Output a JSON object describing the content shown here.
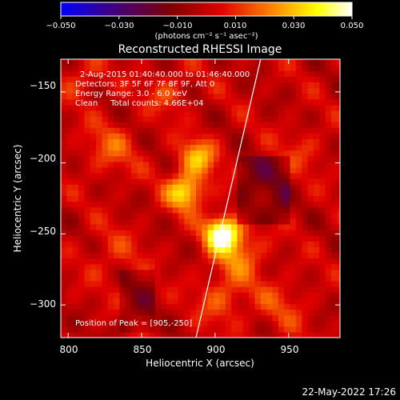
{
  "chart_data": {
    "type": "heatmap",
    "title": "Reconstructed RHESSI Image",
    "xlabel": "Heliocentric X (arcsec)",
    "ylabel": "Heliocentric Y (arcsec)",
    "xlim": [
      795,
      985
    ],
    "ylim": [
      -323,
      -127
    ],
    "x_ticks": [
      800,
      850,
      900,
      950
    ],
    "y_ticks": [
      -150,
      -200,
      -250,
      -300
    ],
    "x_tick_labels": [
      "800",
      "850",
      "900",
      "950"
    ],
    "y_tick_labels": [
      "−150",
      "−200",
      "−250",
      "−300"
    ],
    "colorbar": {
      "min": -0.05,
      "max": 0.05,
      "ticks": [
        -0.05,
        -0.03,
        -0.01,
        0.01,
        0.03,
        0.05
      ],
      "tick_labels": [
        "−0.050",
        "−0.030",
        "−0.010",
        "0.010",
        "0.030",
        "0.050"
      ],
      "label": "(photons cm⁻² s⁻¹ asec⁻²)",
      "colors": [
        "#0000ff",
        "#400080",
        "#800000",
        "#e00000",
        "#ff8000",
        "#ffff00",
        "#ffffff"
      ]
    },
    "annotations": [
      "2-Aug-2015 01:40:40.000 to 01:46:40.000",
      "Detectors: 3F 5F 6F 7F 8F 9F, Att 0",
      "Energy Range: 3.0 - 6.0 keV",
      "Clean     Total counts: 4.66E+04",
      "Position of Peak = [905,-250]"
    ],
    "peak": {
      "x": 905,
      "y": -250
    },
    "limb_line": {
      "x": [
        887,
        931
      ],
      "y": [
        -323,
        -127
      ]
    },
    "sources": [
      {
        "x": 905,
        "y": -249,
        "sigma": 8,
        "value": 0.05
      },
      {
        "x": 880,
        "y": -220,
        "sigma": 9,
        "value": 0.037
      },
      {
        "x": 888,
        "y": -196,
        "sigma": 9,
        "value": 0.028
      },
      {
        "x": 915,
        "y": -262,
        "sigma": 13,
        "value": 0.02
      },
      {
        "x": 905,
        "y": -295,
        "sigma": 12,
        "value": 0.015
      },
      {
        "x": 945,
        "y": -300,
        "sigma": 14,
        "value": 0.01
      },
      {
        "x": 828,
        "y": -190,
        "sigma": 13,
        "value": 0.014
      },
      {
        "x": 960,
        "y": -190,
        "sigma": 12,
        "value": 0.009
      },
      {
        "x": 830,
        "y": -265,
        "sigma": 14,
        "value": 0.009
      },
      {
        "x": 868,
        "y": -150,
        "sigma": 10,
        "value": 0.012
      },
      {
        "x": 810,
        "y": -140,
        "sigma": 10,
        "value": 0.011
      }
    ]
  },
  "timestamp": "22-May-2022 17:26"
}
